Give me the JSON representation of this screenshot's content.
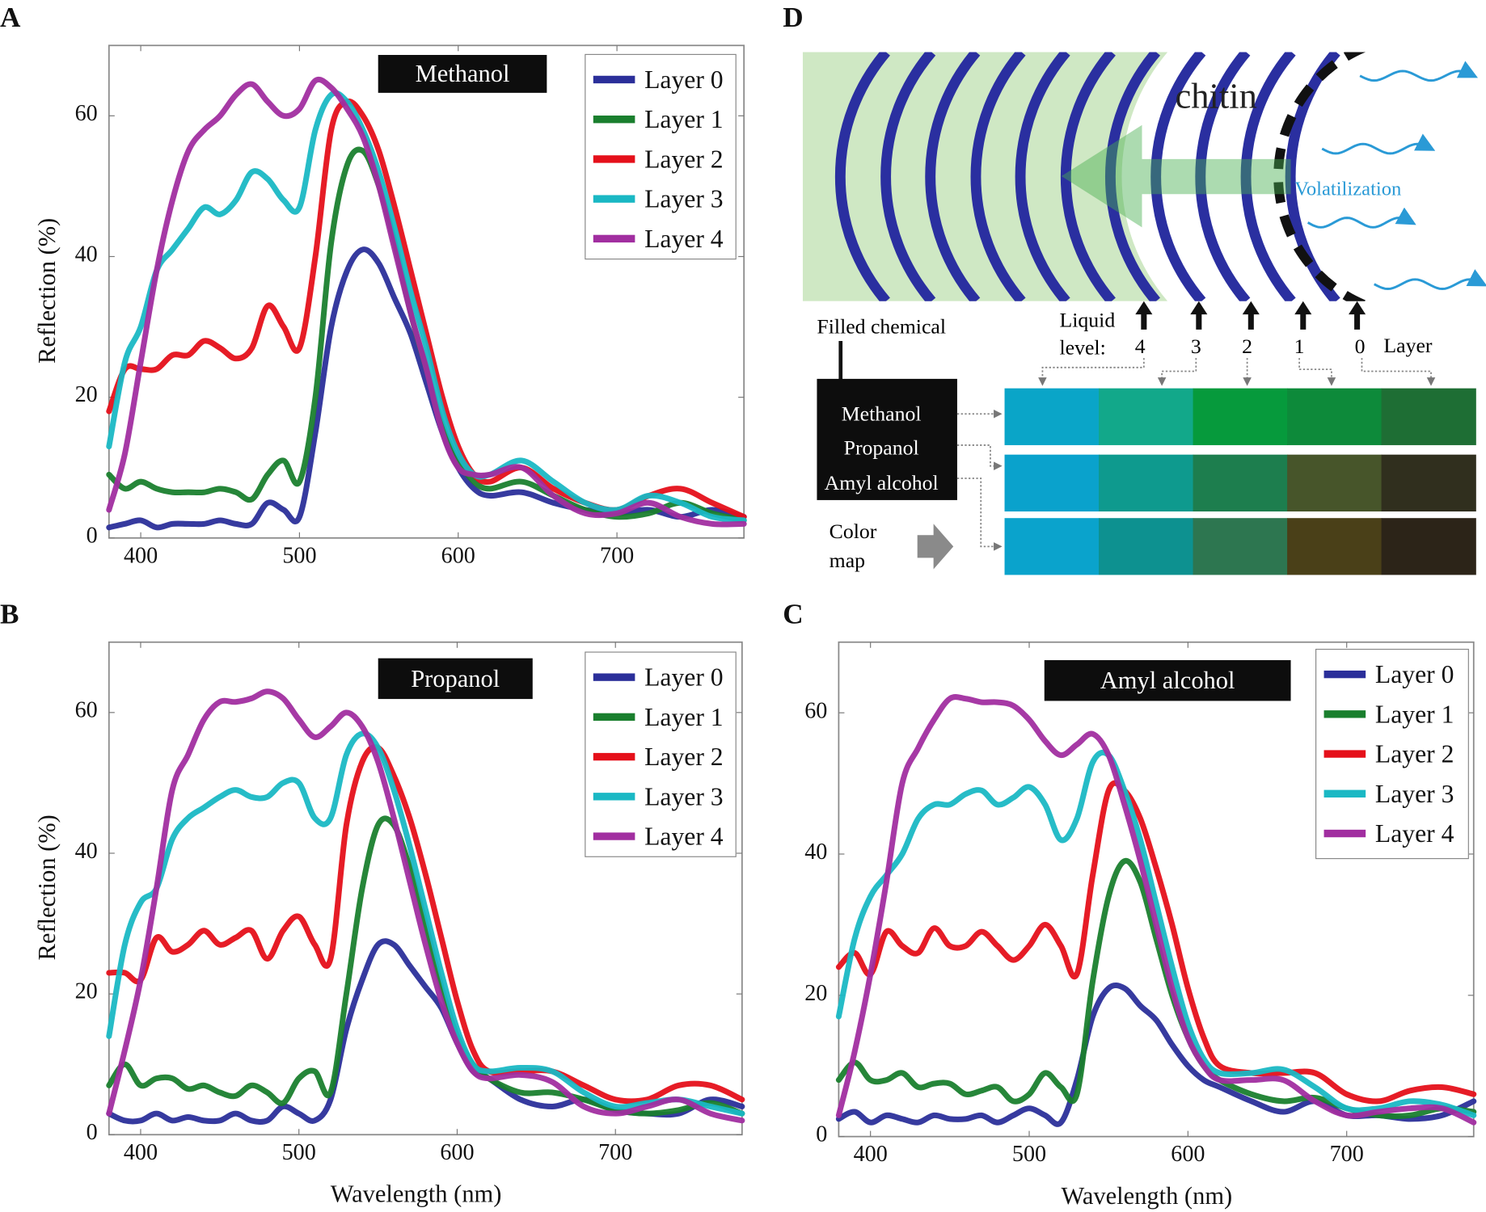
{
  "chart_data": [
    {
      "panel": "A",
      "type": "line",
      "title": "Methanol",
      "xlabel": "",
      "ylabel": "Reflection (%)",
      "xlim": [
        380,
        780
      ],
      "ylim": [
        0,
        70
      ],
      "xticks": [
        400,
        500,
        600,
        700
      ],
      "yticks": [
        0,
        20,
        40,
        60
      ],
      "grid": false,
      "legend": "top-right",
      "x": [
        380,
        390,
        400,
        410,
        420,
        430,
        440,
        450,
        460,
        470,
        480,
        490,
        500,
        510,
        520,
        530,
        540,
        550,
        560,
        570,
        580,
        590,
        600,
        610,
        620,
        640,
        660,
        680,
        700,
        720,
        740,
        760,
        780
      ],
      "series": [
        {
          "name": "Layer 0",
          "color": "#2b2f9a",
          "values": [
            1.5,
            2,
            2.5,
            1.5,
            2,
            2,
            2,
            2.5,
            2,
            2,
            5,
            4,
            3,
            15,
            30,
            38,
            41,
            39,
            34,
            29,
            22,
            15,
            10,
            7,
            6,
            6.5,
            5,
            4,
            3.5,
            4,
            3,
            4,
            3
          ]
        },
        {
          "name": "Layer 1",
          "color": "#1a7f2e",
          "values": [
            9,
            7,
            8,
            7,
            6.5,
            6.5,
            6.5,
            7,
            6.5,
            5.5,
            9,
            11,
            8,
            20,
            42,
            53,
            55,
            50,
            42,
            32,
            24,
            16,
            11,
            8,
            7,
            8,
            6,
            4,
            3,
            3.5,
            5,
            3.5,
            2.5
          ]
        },
        {
          "name": "Layer 2",
          "color": "#e5101a",
          "values": [
            18,
            24,
            24,
            24,
            26,
            26,
            28,
            27,
            25.5,
            27,
            33,
            30,
            27,
            40,
            58,
            62,
            60,
            55,
            47,
            38,
            29,
            20,
            13,
            9,
            8,
            10,
            7,
            5,
            4,
            6,
            7,
            5,
            3
          ]
        },
        {
          "name": "Layer 3",
          "color": "#1ab8c4",
          "values": [
            13,
            25,
            30,
            38,
            41,
            44,
            47,
            46,
            48,
            52,
            51,
            48,
            47,
            58,
            63,
            62,
            58,
            52,
            44,
            35,
            27,
            18,
            12,
            9,
            9,
            11,
            8,
            5,
            4,
            6,
            5,
            3,
            2.5
          ]
        },
        {
          "name": "Layer 4",
          "color": "#a12ea0",
          "values": [
            4,
            12,
            25,
            38,
            48,
            55,
            58,
            60,
            63,
            64.5,
            62,
            60,
            61,
            65,
            64,
            61,
            57,
            50,
            41,
            32,
            24,
            15,
            10,
            9,
            9,
            10,
            6,
            3.5,
            3.5,
            5,
            3,
            2,
            2
          ]
        }
      ]
    },
    {
      "panel": "B",
      "type": "line",
      "title": "Propanol",
      "xlabel": "Wavelength (nm)",
      "ylabel": "Reflection (%)",
      "xlim": [
        380,
        780
      ],
      "ylim": [
        0,
        70
      ],
      "xticks": [
        400,
        500,
        600,
        700
      ],
      "yticks": [
        0,
        20,
        40,
        60
      ],
      "grid": false,
      "legend": "top-right",
      "x": [
        380,
        390,
        400,
        410,
        420,
        430,
        440,
        450,
        460,
        470,
        480,
        490,
        500,
        510,
        520,
        530,
        540,
        550,
        560,
        570,
        580,
        590,
        600,
        610,
        620,
        640,
        660,
        680,
        700,
        720,
        740,
        760,
        780
      ],
      "series": [
        {
          "name": "Layer 0",
          "color": "#2b2f9a",
          "values": [
            3,
            2,
            2,
            3,
            2,
            2.5,
            2,
            2,
            3,
            2,
            2,
            4,
            3,
            2,
            5,
            15,
            22,
            27,
            27,
            24,
            21,
            18,
            13,
            9,
            8,
            5,
            4,
            5,
            3.5,
            3,
            3,
            5,
            4
          ]
        },
        {
          "name": "Layer 1",
          "color": "#1a7f2e",
          "values": [
            7,
            10,
            7,
            8,
            8,
            6.5,
            7,
            6,
            5.5,
            7,
            6,
            4.5,
            8,
            9,
            6,
            20,
            35,
            44,
            44,
            38,
            30,
            21,
            14,
            10,
            8,
            6,
            6,
            5,
            3.5,
            3,
            3.5,
            4.5,
            3
          ]
        },
        {
          "name": "Layer 2",
          "color": "#e5101a",
          "values": [
            23,
            23,
            22,
            28,
            26,
            27,
            29,
            27,
            28,
            29,
            25,
            29,
            31,
            27,
            25,
            44,
            53,
            55,
            51,
            45,
            37,
            28,
            19,
            12,
            9,
            9,
            9,
            7,
            5,
            5,
            7,
            7,
            5
          ]
        },
        {
          "name": "Layer 3",
          "color": "#1ab8c4",
          "values": [
            14,
            27,
            33,
            35,
            42,
            45,
            46.5,
            48,
            49,
            48,
            48,
            50,
            50,
            45,
            45,
            54,
            57,
            55,
            49,
            41,
            32,
            23,
            15,
            10,
            9,
            9.5,
            9,
            6,
            4,
            4.5,
            5,
            4,
            3
          ]
        },
        {
          "name": "Layer 4",
          "color": "#a12ea0",
          "values": [
            3,
            12,
            22,
            35,
            49,
            54,
            59,
            61.5,
            61.5,
            62,
            63,
            62,
            59,
            56.5,
            58,
            60,
            58,
            53,
            45,
            36,
            27,
            19,
            13,
            9,
            8,
            8.5,
            7.5,
            4,
            3,
            4,
            5,
            3,
            2
          ]
        }
      ]
    },
    {
      "panel": "C",
      "type": "line",
      "title": "Amyl alcohol",
      "xlabel": "Wavelength (nm)",
      "ylabel": "",
      "xlim": [
        380,
        780
      ],
      "ylim": [
        0,
        70
      ],
      "xticks": [
        400,
        500,
        600,
        700
      ],
      "yticks": [
        0,
        20,
        40,
        60
      ],
      "grid": false,
      "legend": "top-right",
      "x": [
        380,
        390,
        400,
        410,
        420,
        430,
        440,
        450,
        460,
        470,
        480,
        490,
        500,
        510,
        520,
        530,
        540,
        550,
        560,
        570,
        580,
        590,
        600,
        610,
        620,
        640,
        660,
        680,
        700,
        720,
        740,
        760,
        780
      ],
      "series": [
        {
          "name": "Layer 0",
          "color": "#2b2f9a",
          "values": [
            2.5,
            3.5,
            2,
            3,
            2.5,
            2,
            3,
            2.5,
            2.5,
            3,
            2,
            3,
            4,
            3,
            2,
            8,
            17,
            21,
            21,
            18.5,
            16.5,
            13,
            10,
            8,
            7,
            5,
            3.5,
            5,
            3,
            3,
            2.5,
            3,
            5
          ]
        },
        {
          "name": "Layer 1",
          "color": "#1a7f2e",
          "values": [
            8,
            10.5,
            8,
            8,
            9,
            7,
            7.5,
            7.5,
            6,
            6.5,
            7,
            5,
            6,
            9,
            7,
            6,
            22,
            34,
            39,
            36,
            28,
            20,
            14,
            10,
            8,
            6,
            5,
            5.5,
            4,
            3,
            3,
            4,
            3.5
          ]
        },
        {
          "name": "Layer 2",
          "color": "#e5101a",
          "values": [
            24,
            26,
            23,
            29,
            27,
            26,
            29.5,
            27,
            27,
            29,
            27,
            25,
            27,
            30,
            27,
            23,
            37,
            49,
            49,
            45,
            38,
            30,
            21,
            14,
            10,
            9,
            9,
            9,
            6,
            5,
            6.5,
            7,
            6
          ]
        },
        {
          "name": "Layer 3",
          "color": "#1ab8c4",
          "values": [
            17,
            28,
            34,
            37,
            40,
            45,
            47,
            47,
            48.5,
            49,
            47,
            48,
            49.5,
            47,
            42,
            45,
            53,
            54,
            49,
            42,
            33,
            24,
            16,
            11,
            9,
            9,
            9.5,
            7,
            4,
            4,
            5,
            4.5,
            3
          ]
        },
        {
          "name": "Layer 4",
          "color": "#a12ea0",
          "values": [
            3,
            12,
            23,
            36,
            50,
            55,
            59,
            62,
            62,
            61.5,
            61.5,
            61,
            59,
            56,
            54,
            55.5,
            57,
            54,
            47,
            39,
            30,
            21,
            14,
            10,
            8,
            8,
            8,
            5,
            3,
            3.5,
            4,
            4,
            2
          ]
        }
      ]
    }
  ],
  "diagram": {
    "panel": "D",
    "chitin_label": "chitin",
    "volatilization_label": "Volatilization",
    "filled_chemical_label": "Filled chemical",
    "chemicals": [
      "Methanol",
      "Propanol",
      "Amyl alcohol"
    ],
    "liquid_level_label": [
      "Liquid",
      "level:"
    ],
    "levels": [
      "4",
      "3",
      "2",
      "1",
      "0"
    ],
    "layer_label": "Layer",
    "color_map_label": [
      "Color",
      "map"
    ],
    "colors": {
      "chitin": "#2a2fa0",
      "filled": "#cfe8c4",
      "volatilization": "#2a9ad6"
    },
    "color_rows": [
      {
        "chemical": "Methanol",
        "colors": [
          "#0aa5c8",
          "#12a88a",
          "#069a3c",
          "#0d8a3a",
          "#1e6e34"
        ]
      },
      {
        "chemical": "Propanol",
        "colors": [
          "#0aa2cc",
          "#0e9a8e",
          "#1d7e4e",
          "#47552a",
          "#302f1e"
        ]
      },
      {
        "chemical": "Amyl alcohol",
        "colors": [
          "#0aa3cc",
          "#0d9190",
          "#2d7650",
          "#4a4018",
          "#2c2418"
        ]
      }
    ]
  }
}
